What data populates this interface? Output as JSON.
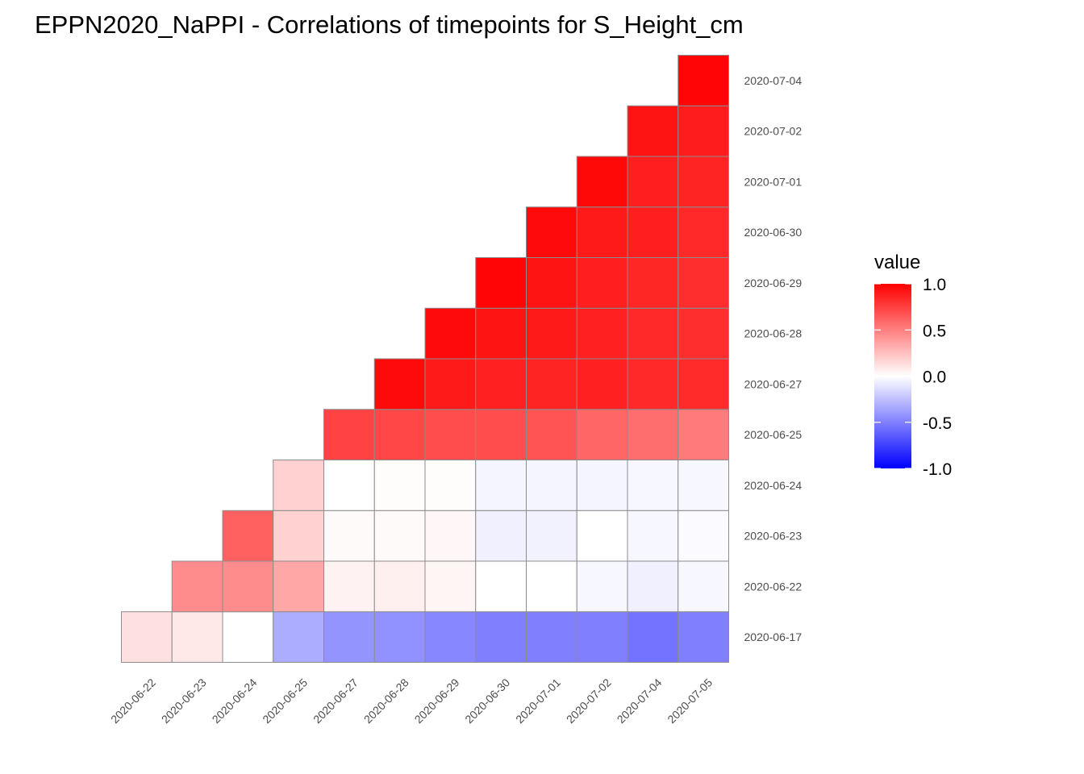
{
  "chart_data": {
    "type": "heatmap",
    "title": "EPPN2020_NaPPI - Correlations of timepoints for S_Height_cm",
    "x_categories": [
      "2020-06-22",
      "2020-06-23",
      "2020-06-24",
      "2020-06-25",
      "2020-06-27",
      "2020-06-28",
      "2020-06-29",
      "2020-06-30",
      "2020-07-01",
      "2020-07-02",
      "2020-07-04",
      "2020-07-05"
    ],
    "y_categories": [
      "2020-06-17",
      "2020-06-22",
      "2020-06-23",
      "2020-06-24",
      "2020-06-25",
      "2020-06-27",
      "2020-06-28",
      "2020-06-29",
      "2020-06-30",
      "2020-07-01",
      "2020-07-02",
      "2020-07-04"
    ],
    "values": [
      [
        0.12,
        0.09,
        0.0,
        -0.32,
        -0.42,
        -0.43,
        -0.47,
        -0.5,
        -0.5,
        -0.5,
        -0.55,
        -0.5
      ],
      [
        null,
        0.45,
        0.45,
        0.35,
        0.05,
        0.06,
        0.04,
        0.0,
        0.0,
        -0.03,
        -0.06,
        -0.03
      ],
      [
        null,
        null,
        0.62,
        0.18,
        0.02,
        0.02,
        0.03,
        -0.06,
        -0.05,
        0.0,
        -0.03,
        -0.02
      ],
      [
        null,
        null,
        null,
        0.18,
        0.0,
        0.01,
        0.01,
        -0.04,
        -0.04,
        -0.04,
        -0.03,
        -0.03
      ],
      [
        null,
        null,
        null,
        null,
        0.74,
        0.72,
        0.7,
        0.7,
        0.67,
        0.6,
        0.57,
        0.52
      ],
      [
        null,
        null,
        null,
        null,
        null,
        0.96,
        0.9,
        0.87,
        0.86,
        0.87,
        0.84,
        0.83
      ],
      [
        null,
        null,
        null,
        null,
        null,
        null,
        0.96,
        0.92,
        0.9,
        0.87,
        0.84,
        0.82
      ],
      [
        null,
        null,
        null,
        null,
        null,
        null,
        null,
        0.98,
        0.92,
        0.88,
        0.85,
        0.82
      ],
      [
        null,
        null,
        null,
        null,
        null,
        null,
        null,
        null,
        0.96,
        0.9,
        0.88,
        0.84
      ],
      [
        null,
        null,
        null,
        null,
        null,
        null,
        null,
        null,
        null,
        0.97,
        0.88,
        0.86
      ],
      [
        null,
        null,
        null,
        null,
        null,
        null,
        null,
        null,
        null,
        null,
        0.92,
        0.89
      ],
      [
        null,
        null,
        null,
        null,
        null,
        null,
        null,
        null,
        null,
        null,
        null,
        0.98
      ]
    ],
    "legend": {
      "title": "value",
      "ticks": [
        1.0,
        0.5,
        0.0,
        -0.5,
        -1.0
      ],
      "tick_labels": [
        "1.0",
        "0.5",
        "0.0",
        "-0.5",
        "-1.0"
      ],
      "range": [
        -1,
        1
      ],
      "position": "right"
    },
    "colors": {
      "low": "#0000ff",
      "mid": "#ffffff",
      "high": "#ff0000",
      "border": "#8c8c8c"
    },
    "grid": false
  }
}
